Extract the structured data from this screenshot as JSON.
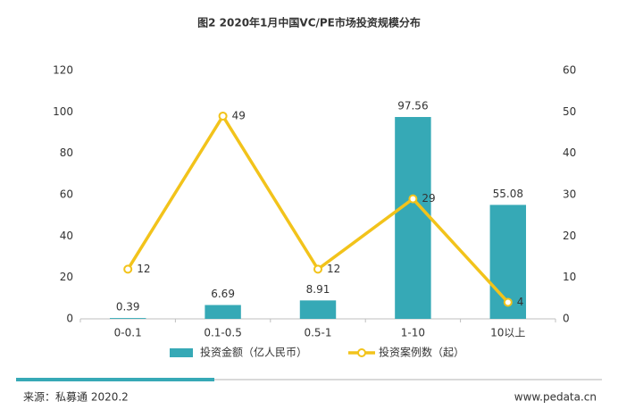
{
  "chart_data": {
    "type": "bar",
    "title": "图2 2020年1月中国VC/PE市场投资规模分布",
    "categories": [
      "0-0.1",
      "0.1-0.5",
      "0.5-1",
      "1-10",
      "10以上"
    ],
    "series": [
      {
        "name": "投资金额（亿人民币）",
        "type": "bar",
        "color": "#36a9b6",
        "values": [
          0.39,
          6.69,
          8.91,
          97.56,
          55.08
        ]
      },
      {
        "name": "投资案例数（起）",
        "type": "line",
        "axis": "y2",
        "color": "#f2c31b",
        "values": [
          12,
          49,
          12,
          29,
          4
        ]
      }
    ],
    "ylim": [
      0,
      120
    ],
    "yticks": [
      0,
      20,
      40,
      60,
      80,
      100,
      120
    ],
    "y2lim": [
      0,
      60
    ],
    "y2ticks": [
      0,
      10,
      20,
      30,
      40,
      50,
      60
    ],
    "grid": false,
    "legend": "bottom",
    "source": "来源：私募通 2020.2",
    "website": "www.pedata.cn"
  }
}
